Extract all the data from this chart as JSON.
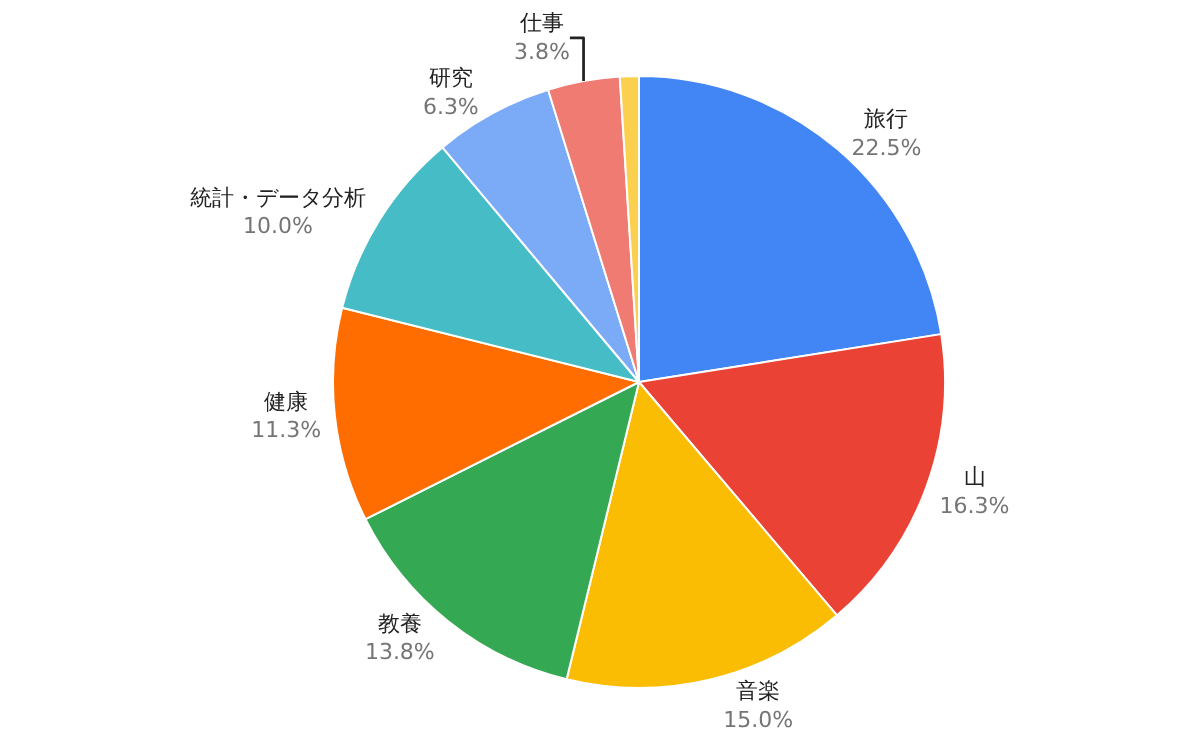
{
  "chart_data": {
    "type": "pie",
    "categories": [
      "旅行",
      "山",
      "音楽",
      "教養",
      "健康",
      "統計・データ分析",
      "研究",
      "仕事",
      null
    ],
    "values": [
      22.5,
      16.3,
      15.0,
      13.8,
      11.3,
      10.0,
      6.3,
      3.8,
      1.0
    ],
    "value_labels": [
      "22.5%",
      "16.3%",
      "15.0%",
      "13.8%",
      "11.3%",
      "10.0%",
      "6.3%",
      "3.8%",
      null
    ],
    "colors": [
      "#4285f4",
      "#ea4335",
      "#fbbc04",
      "#34a853",
      "#ff6d01",
      "#46bdc6",
      "#7baaf7",
      "#f07b72",
      "#fcd04f"
    ],
    "legend": false
  }
}
